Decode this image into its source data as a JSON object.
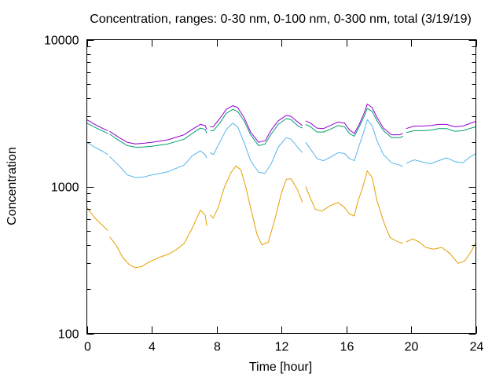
{
  "chart_data": {
    "type": "line",
    "title": "Concentration, ranges: 0-30 nm, 0-100 nm, 0-300 nm, total (3/19/19)",
    "xlabel": "Time [hour]",
    "ylabel": "Concentration",
    "xlim": [
      0,
      24
    ],
    "ylim": [
      100,
      10000
    ],
    "yscale": "log",
    "grid": false,
    "legend": "none",
    "x_ticks": [
      0,
      4,
      8,
      12,
      16,
      20,
      24
    ],
    "x_tick_labels": [
      "0",
      "4",
      "8",
      "12",
      "16",
      "20",
      "24"
    ],
    "y_ticks": [
      100,
      1000,
      10000
    ],
    "y_tick_labels": [
      "100",
      "1000",
      "10000"
    ],
    "series": [
      {
        "color": "#e69f00",
        "segments": [
          [
            [
              0.0,
              720
            ],
            [
              0.5,
              610
            ],
            [
              1.0,
              540
            ],
            [
              1.3,
              500
            ]
          ],
          [
            [
              1.4,
              455
            ],
            [
              1.8,
              400
            ],
            [
              2.2,
              330
            ],
            [
              2.6,
              295
            ],
            [
              3.0,
              280
            ],
            [
              3.4,
              285
            ],
            [
              3.8,
              305
            ],
            [
              4.5,
              330
            ],
            [
              5.0,
              345
            ],
            [
              5.5,
              370
            ],
            [
              6.0,
              410
            ],
            [
              6.5,
              520
            ],
            [
              7.0,
              690
            ],
            [
              7.3,
              640
            ],
            [
              7.4,
              540
            ]
          ],
          [
            [
              7.6,
              640
            ],
            [
              7.8,
              610
            ],
            [
              8.1,
              720
            ],
            [
              8.5,
              1000
            ],
            [
              8.9,
              1250
            ],
            [
              9.2,
              1380
            ],
            [
              9.5,
              1300
            ],
            [
              9.8,
              1000
            ],
            [
              10.1,
              720
            ],
            [
              10.5,
              470
            ],
            [
              10.8,
              400
            ],
            [
              11.2,
              420
            ],
            [
              11.6,
              600
            ],
            [
              12.0,
              900
            ],
            [
              12.3,
              1120
            ],
            [
              12.6,
              1130
            ],
            [
              13.0,
              950
            ],
            [
              13.3,
              780
            ]
          ],
          [
            [
              13.5,
              1000
            ],
            [
              13.8,
              830
            ],
            [
              14.1,
              700
            ],
            [
              14.5,
              680
            ],
            [
              15.0,
              740
            ],
            [
              15.5,
              780
            ],
            [
              15.9,
              720
            ],
            [
              16.2,
              650
            ],
            [
              16.5,
              630
            ],
            [
              16.7,
              780
            ],
            [
              17.0,
              970
            ],
            [
              17.3,
              1280
            ],
            [
              17.6,
              1150
            ],
            [
              17.9,
              800
            ],
            [
              18.3,
              580
            ],
            [
              18.7,
              450
            ],
            [
              19.2,
              420
            ],
            [
              19.5,
              410
            ]
          ],
          [
            [
              19.7,
              420
            ],
            [
              20.1,
              440
            ],
            [
              20.5,
              420
            ],
            [
              20.9,
              385
            ],
            [
              21.4,
              375
            ],
            [
              21.9,
              385
            ],
            [
              22.4,
              350
            ],
            [
              22.9,
              300
            ],
            [
              23.3,
              310
            ],
            [
              23.7,
              360
            ],
            [
              24.0,
              415
            ]
          ]
        ]
      },
      {
        "color": "#56b4e9",
        "segments": [
          [
            [
              0.0,
              2000
            ],
            [
              0.5,
              1850
            ],
            [
              1.0,
              1730
            ],
            [
              1.3,
              1650
            ]
          ],
          [
            [
              1.4,
              1600
            ],
            [
              2.0,
              1380
            ],
            [
              2.5,
              1200
            ],
            [
              3.0,
              1150
            ],
            [
              3.5,
              1160
            ],
            [
              4.0,
              1200
            ],
            [
              5.0,
              1260
            ],
            [
              6.0,
              1400
            ],
            [
              6.5,
              1620
            ],
            [
              7.0,
              1750
            ],
            [
              7.3,
              1650
            ],
            [
              7.4,
              1560
            ]
          ],
          [
            [
              7.6,
              1700
            ],
            [
              7.8,
              1650
            ],
            [
              8.2,
              2000
            ],
            [
              8.6,
              2450
            ],
            [
              9.0,
              2700
            ],
            [
              9.3,
              2550
            ],
            [
              9.7,
              2000
            ],
            [
              10.1,
              1500
            ],
            [
              10.6,
              1250
            ],
            [
              11.0,
              1230
            ],
            [
              11.4,
              1450
            ],
            [
              11.8,
              1850
            ],
            [
              12.3,
              2150
            ],
            [
              12.6,
              2100
            ],
            [
              13.0,
              1850
            ],
            [
              13.3,
              1700
            ]
          ],
          [
            [
              13.5,
              2000
            ],
            [
              13.8,
              1800
            ],
            [
              14.2,
              1550
            ],
            [
              14.6,
              1500
            ],
            [
              15.0,
              1580
            ],
            [
              15.5,
              1700
            ],
            [
              15.9,
              1680
            ],
            [
              16.2,
              1550
            ],
            [
              16.5,
              1500
            ],
            [
              16.8,
              1900
            ],
            [
              17.1,
              2400
            ],
            [
              17.3,
              2850
            ],
            [
              17.6,
              2600
            ],
            [
              17.9,
              2050
            ],
            [
              18.3,
              1650
            ],
            [
              18.8,
              1450
            ],
            [
              19.3,
              1400
            ],
            [
              19.5,
              1370
            ]
          ],
          [
            [
              19.7,
              1440
            ],
            [
              20.2,
              1520
            ],
            [
              20.7,
              1470
            ],
            [
              21.2,
              1430
            ],
            [
              21.7,
              1500
            ],
            [
              22.2,
              1570
            ],
            [
              22.7,
              1480
            ],
            [
              23.2,
              1450
            ],
            [
              23.6,
              1580
            ],
            [
              24.0,
              1680
            ]
          ]
        ]
      },
      {
        "color": "#009e73",
        "segments": [
          [
            [
              0.0,
              2700
            ],
            [
              0.5,
              2530
            ],
            [
              1.0,
              2380
            ],
            [
              1.3,
              2300
            ]
          ],
          [
            [
              1.4,
              2280
            ],
            [
              2.0,
              2050
            ],
            [
              2.5,
              1900
            ],
            [
              3.0,
              1850
            ],
            [
              3.5,
              1860
            ],
            [
              4.0,
              1880
            ],
            [
              5.0,
              1950
            ],
            [
              6.0,
              2100
            ],
            [
              6.5,
              2300
            ],
            [
              7.0,
              2500
            ],
            [
              7.3,
              2450
            ],
            [
              7.4,
              2300
            ]
          ],
          [
            [
              7.6,
              2400
            ],
            [
              7.8,
              2400
            ],
            [
              8.2,
              2700
            ],
            [
              8.6,
              3150
            ],
            [
              9.0,
              3350
            ],
            [
              9.3,
              3250
            ],
            [
              9.7,
              2800
            ],
            [
              10.1,
              2250
            ],
            [
              10.6,
              1900
            ],
            [
              11.0,
              1950
            ],
            [
              11.4,
              2300
            ],
            [
              11.8,
              2650
            ],
            [
              12.3,
              2900
            ],
            [
              12.6,
              2850
            ],
            [
              13.0,
              2600
            ],
            [
              13.3,
              2500
            ]
          ],
          [
            [
              13.5,
              2650
            ],
            [
              13.8,
              2550
            ],
            [
              14.2,
              2350
            ],
            [
              14.6,
              2350
            ],
            [
              15.0,
              2450
            ],
            [
              15.5,
              2600
            ],
            [
              15.9,
              2550
            ],
            [
              16.2,
              2300
            ],
            [
              16.5,
              2200
            ],
            [
              16.8,
              2550
            ],
            [
              17.1,
              3000
            ],
            [
              17.3,
              3400
            ],
            [
              17.6,
              3250
            ],
            [
              17.9,
              2800
            ],
            [
              18.3,
              2400
            ],
            [
              18.8,
              2150
            ],
            [
              19.3,
              2150
            ],
            [
              19.5,
              2200
            ]
          ],
          [
            [
              19.7,
              2330
            ],
            [
              20.2,
              2400
            ],
            [
              20.7,
              2400
            ],
            [
              21.2,
              2420
            ],
            [
              21.7,
              2480
            ],
            [
              22.2,
              2480
            ],
            [
              22.7,
              2380
            ],
            [
              23.2,
              2400
            ],
            [
              23.6,
              2480
            ],
            [
              24.0,
              2550
            ]
          ]
        ]
      },
      {
        "color": "#9400d3",
        "segments": [
          [
            [
              0.0,
              2850
            ],
            [
              0.5,
              2650
            ],
            [
              1.0,
              2480
            ],
            [
              1.3,
              2400
            ]
          ],
          [
            [
              1.4,
              2380
            ],
            [
              2.0,
              2150
            ],
            [
              2.5,
              2000
            ],
            [
              3.0,
              1950
            ],
            [
              3.5,
              1970
            ],
            [
              4.0,
              2000
            ],
            [
              5.0,
              2080
            ],
            [
              6.0,
              2250
            ],
            [
              6.5,
              2450
            ],
            [
              7.0,
              2650
            ],
            [
              7.3,
              2600
            ],
            [
              7.4,
              2450
            ]
          ],
          [
            [
              7.6,
              2550
            ],
            [
              7.8,
              2560
            ],
            [
              8.2,
              2900
            ],
            [
              8.6,
              3350
            ],
            [
              9.0,
              3550
            ],
            [
              9.3,
              3450
            ],
            [
              9.7,
              2950
            ],
            [
              10.1,
              2350
            ],
            [
              10.6,
              2000
            ],
            [
              11.0,
              2050
            ],
            [
              11.4,
              2450
            ],
            [
              11.8,
              2800
            ],
            [
              12.3,
              3050
            ],
            [
              12.6,
              3000
            ],
            [
              13.0,
              2750
            ],
            [
              13.3,
              2600
            ]
          ],
          [
            [
              13.5,
              2800
            ],
            [
              13.8,
              2700
            ],
            [
              14.2,
              2500
            ],
            [
              14.6,
              2480
            ],
            [
              15.0,
              2600
            ],
            [
              15.5,
              2750
            ],
            [
              15.9,
              2700
            ],
            [
              16.2,
              2430
            ],
            [
              16.5,
              2300
            ],
            [
              16.8,
              2650
            ],
            [
              17.1,
              3150
            ],
            [
              17.3,
              3650
            ],
            [
              17.6,
              3450
            ],
            [
              17.9,
              2950
            ],
            [
              18.3,
              2500
            ],
            [
              18.8,
              2250
            ],
            [
              19.3,
              2250
            ],
            [
              19.5,
              2300
            ]
          ],
          [
            [
              19.7,
              2480
            ],
            [
              20.2,
              2580
            ],
            [
              20.7,
              2580
            ],
            [
              21.2,
              2600
            ],
            [
              21.7,
              2650
            ],
            [
              22.2,
              2650
            ],
            [
              22.7,
              2550
            ],
            [
              23.2,
              2580
            ],
            [
              23.6,
              2680
            ],
            [
              24.0,
              2780
            ]
          ]
        ]
      }
    ]
  }
}
